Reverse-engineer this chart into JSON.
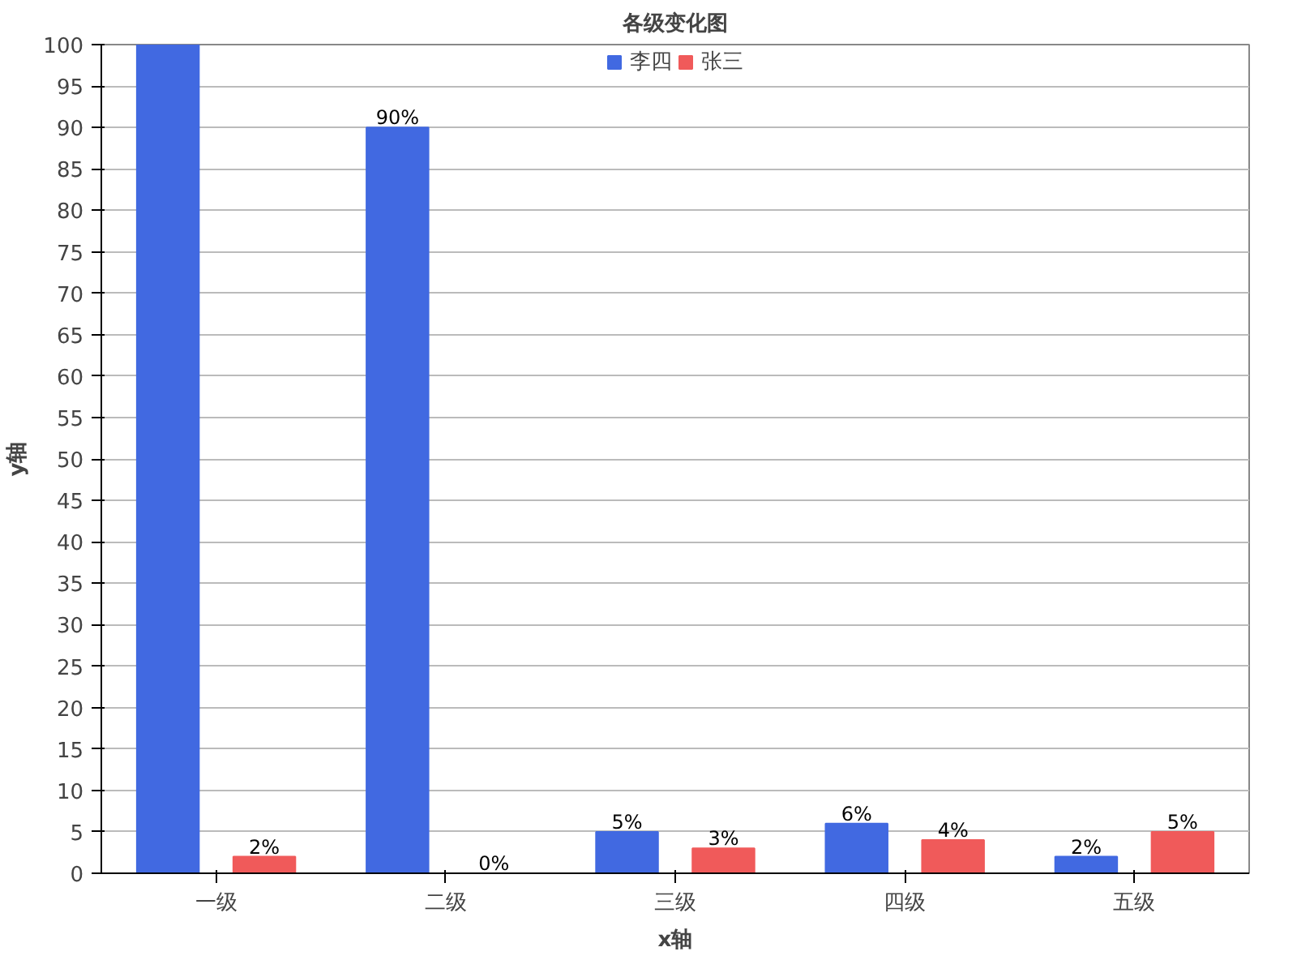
{
  "chart_data": {
    "type": "bar",
    "title": "各级变化图",
    "xlabel": "x轴",
    "ylabel": "y轴",
    "categories": [
      "一级",
      "二级",
      "三级",
      "四级",
      "五级"
    ],
    "series": [
      {
        "name": "李四",
        "color": "#4169e1",
        "values": [
          100,
          90,
          5,
          6,
          2
        ],
        "value_labels": [
          null,
          "90%",
          "5%",
          "6%",
          "2%"
        ]
      },
      {
        "name": "张三",
        "color": "#f05a5a",
        "values": [
          2,
          0,
          3,
          4,
          5
        ],
        "value_labels": [
          "2%",
          "0%",
          "3%",
          "4%",
          "5%"
        ]
      }
    ],
    "ylim": [
      0,
      100
    ],
    "yticks": [
      0,
      5,
      10,
      15,
      20,
      25,
      30,
      35,
      40,
      45,
      50,
      55,
      60,
      65,
      70,
      75,
      80,
      85,
      90,
      95,
      100
    ],
    "grid": "y",
    "legend": "top"
  }
}
